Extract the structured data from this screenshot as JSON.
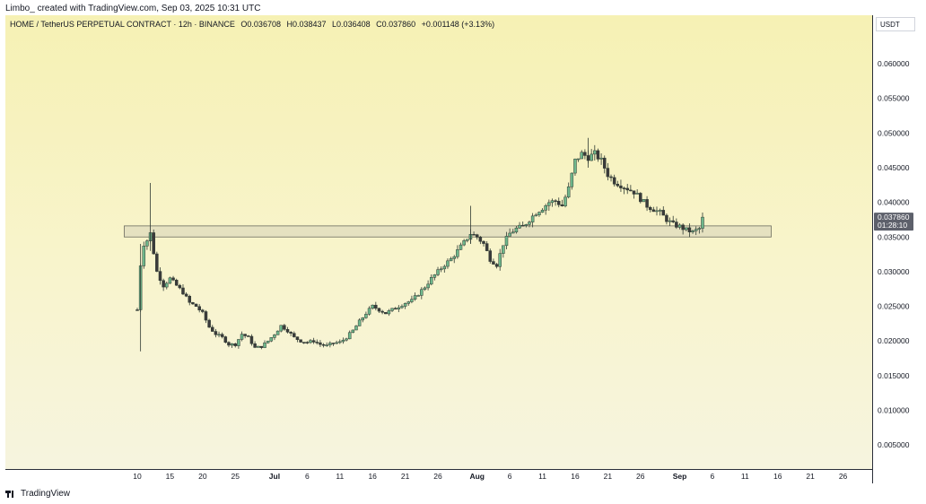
{
  "header": {
    "author": "Limbo_",
    "credit": "created with TradingView.com, Sep 03, 2025 10:31 UTC"
  },
  "legend": {
    "symbol": "HOME / TetherUS PERPETUAL CONTRACT · 12h · BINANCE",
    "open": "O0.036708",
    "high": "H0.038437",
    "low": "L0.036408",
    "close": "C0.037860",
    "change": "+0.001148 (+3.13%)"
  },
  "price_axis": {
    "currency": "USDT",
    "last_price_label": "0.037860",
    "countdown_label": "01:28:10"
  },
  "footer": {
    "brand": "TradingView"
  },
  "colors": {
    "up": "#26a69a",
    "down": "#ef5350",
    "candle_body_up": "#6fb88c",
    "candle_body_down": "#3a3a3a",
    "zone_fill": "#e2dfbf",
    "zone_stroke": "#6b6b5e",
    "last_price_bg": "#5d606b"
  },
  "chart_data": {
    "type": "candlestick",
    "interval": "12h",
    "title": "HOME / TetherUS PERPETUAL CONTRACT · 12h · BINANCE",
    "y_ticks": [
      "0.060000",
      "0.055000",
      "0.050000",
      "0.045000",
      "0.040000",
      "0.035000",
      "0.030000",
      "0.025000",
      "0.020000",
      "0.015000",
      "0.010000",
      "0.005000"
    ],
    "y_tick_values": [
      0.06,
      0.055,
      0.05,
      0.045,
      0.04,
      0.035,
      0.03,
      0.025,
      0.02,
      0.015,
      0.01,
      0.005
    ],
    "x_ticks": [
      {
        "label": "10",
        "day": 10
      },
      {
        "label": "15",
        "day": 15
      },
      {
        "label": "20",
        "day": 20
      },
      {
        "label": "25",
        "day": 25
      },
      {
        "label": "Jul",
        "day": 31
      },
      {
        "label": "6",
        "day": 36
      },
      {
        "label": "11",
        "day": 41
      },
      {
        "label": "16",
        "day": 46
      },
      {
        "label": "21",
        "day": 51
      },
      {
        "label": "26",
        "day": 56
      },
      {
        "label": "Aug",
        "day": 62
      },
      {
        "label": "6",
        "day": 67
      },
      {
        "label": "11",
        "day": 72
      },
      {
        "label": "16",
        "day": 77
      },
      {
        "label": "21",
        "day": 82
      },
      {
        "label": "26",
        "day": 87
      },
      {
        "label": "Sep",
        "day": 93
      },
      {
        "label": "6",
        "day": 98
      },
      {
        "label": "11",
        "day": 103
      },
      {
        "label": "16",
        "day": 108
      },
      {
        "label": "21",
        "day": 113
      },
      {
        "label": "26",
        "day": 118
      }
    ],
    "x_unit": "days since Jun 0, 2025",
    "support_zone": {
      "from_day": 8,
      "to_day": 107,
      "low": 0.035,
      "high": 0.0366
    },
    "last_price": 0.03786,
    "path": [
      [
        10,
        0.0245
      ],
      [
        10.5,
        0.031
      ],
      [
        11,
        0.034
      ],
      [
        11.5,
        0.0345
      ],
      [
        12,
        0.0355
      ],
      [
        13,
        0.03
      ],
      [
        14,
        0.028
      ],
      [
        15,
        0.029
      ],
      [
        16,
        0.028
      ],
      [
        17,
        0.027
      ],
      [
        18,
        0.0255
      ],
      [
        19,
        0.025
      ],
      [
        20,
        0.024
      ],
      [
        21,
        0.022
      ],
      [
        22,
        0.021
      ],
      [
        23,
        0.0205
      ],
      [
        24,
        0.0195
      ],
      [
        25,
        0.0195
      ],
      [
        26,
        0.021
      ],
      [
        27,
        0.0205
      ],
      [
        28,
        0.019
      ],
      [
        29,
        0.0192
      ],
      [
        30,
        0.02
      ],
      [
        31,
        0.021
      ],
      [
        32,
        0.0222
      ],
      [
        33,
        0.0215
      ],
      [
        34,
        0.0205
      ],
      [
        35,
        0.02
      ],
      [
        36,
        0.0198
      ],
      [
        37,
        0.02
      ],
      [
        38,
        0.0195
      ],
      [
        39,
        0.0193
      ],
      [
        40,
        0.0197
      ],
      [
        41,
        0.0198
      ],
      [
        42,
        0.0205
      ],
      [
        43,
        0.0215
      ],
      [
        44,
        0.0228
      ],
      [
        45,
        0.024
      ],
      [
        46,
        0.025
      ],
      [
        47,
        0.0245
      ],
      [
        48,
        0.024
      ],
      [
        49,
        0.0245
      ],
      [
        50,
        0.025
      ],
      [
        51,
        0.0255
      ],
      [
        52,
        0.0258
      ],
      [
        53,
        0.0268
      ],
      [
        54,
        0.0278
      ],
      [
        55,
        0.029
      ],
      [
        56,
        0.03
      ],
      [
        57,
        0.031
      ],
      [
        58,
        0.0318
      ],
      [
        59,
        0.033
      ],
      [
        60,
        0.0342
      ],
      [
        61,
        0.0355
      ],
      [
        62,
        0.035
      ],
      [
        63,
        0.034
      ],
      [
        64,
        0.0318
      ],
      [
        65,
        0.031
      ],
      [
        66,
        0.034
      ],
      [
        67,
        0.0355
      ],
      [
        68,
        0.0362
      ],
      [
        69,
        0.0365
      ],
      [
        70,
        0.0375
      ],
      [
        71,
        0.0385
      ],
      [
        72,
        0.0392
      ],
      [
        73,
        0.04
      ],
      [
        74,
        0.0402
      ],
      [
        75,
        0.0395
      ],
      [
        76,
        0.042
      ],
      [
        77,
        0.046
      ],
      [
        78,
        0.047
      ],
      [
        79,
        0.0465
      ],
      [
        80,
        0.047
      ],
      [
        81,
        0.046
      ],
      [
        82,
        0.044
      ],
      [
        83,
        0.043
      ],
      [
        84,
        0.0425
      ],
      [
        85,
        0.042
      ],
      [
        86,
        0.0415
      ],
      [
        87,
        0.0405
      ],
      [
        88,
        0.0395
      ],
      [
        89,
        0.039
      ],
      [
        90,
        0.0385
      ],
      [
        91,
        0.0375
      ],
      [
        92,
        0.0368
      ],
      [
        93,
        0.0365
      ],
      [
        94,
        0.036
      ],
      [
        95,
        0.0357
      ],
      [
        96,
        0.0362
      ],
      [
        96.5,
        0.0378
      ]
    ]
  }
}
